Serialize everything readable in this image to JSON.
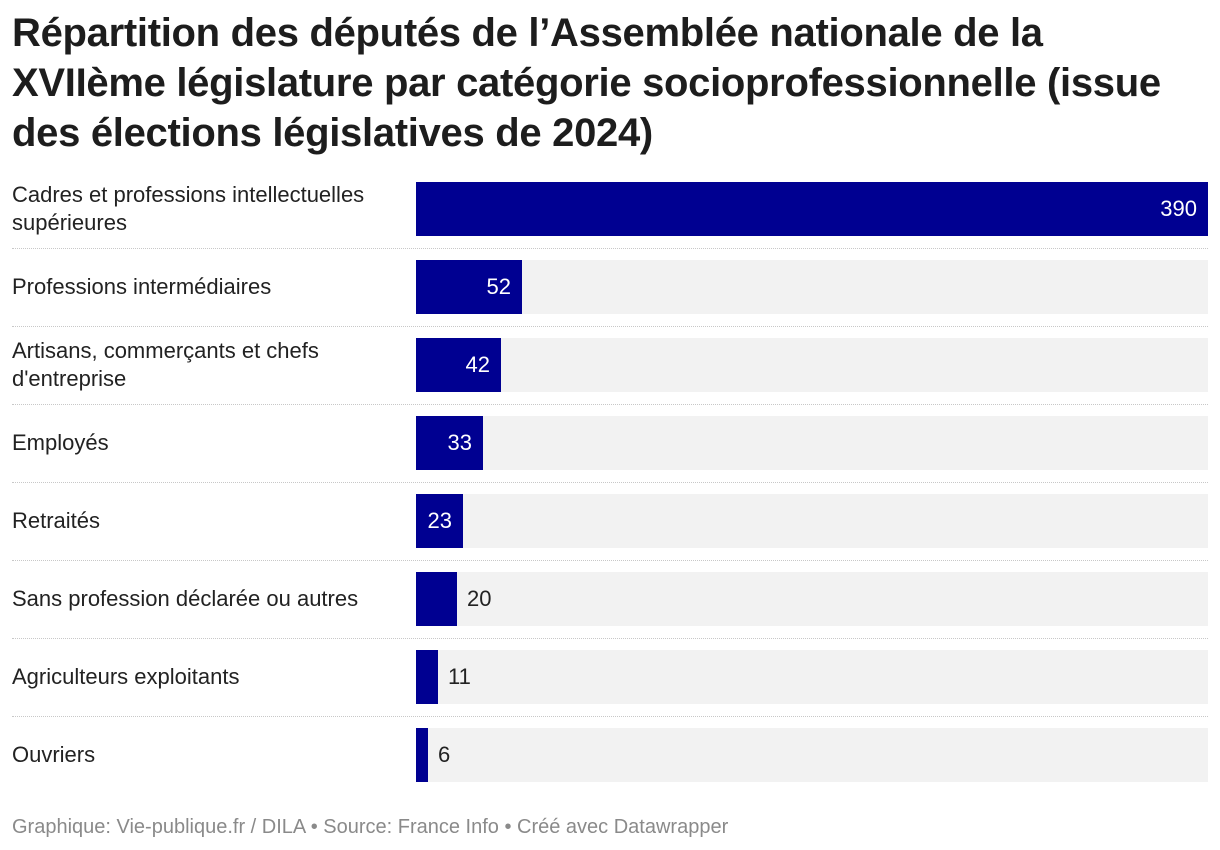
{
  "chart_data": {
    "type": "bar",
    "orientation": "horizontal",
    "title": "Répartition des députés de l’Assemblée nationale de la XVIIème législature par catégorie socioprofessionnelle (issue des élections législatives de 2024)",
    "categories": [
      "Cadres et professions intellectuelles supérieures",
      "Professions intermédiaires",
      "Artisans, commerçants et chefs d'entreprise",
      "Employés",
      "Retraités",
      "Sans profession déclarée ou autres",
      "Agriculteurs exploitants",
      "Ouvriers"
    ],
    "values": [
      390,
      52,
      42,
      33,
      23,
      20,
      11,
      6
    ],
    "xlim": [
      0,
      390
    ],
    "xlabel": "",
    "ylabel": "",
    "grid": false
  },
  "footer": "Graphique: Vie-publique.fr / DILA • Source: France Info • Créé avec Datawrapper",
  "colors": {
    "bar": "#000091",
    "track": "#f2f2f2",
    "label_inside": "#ffffff",
    "label_outside": "#222222"
  }
}
